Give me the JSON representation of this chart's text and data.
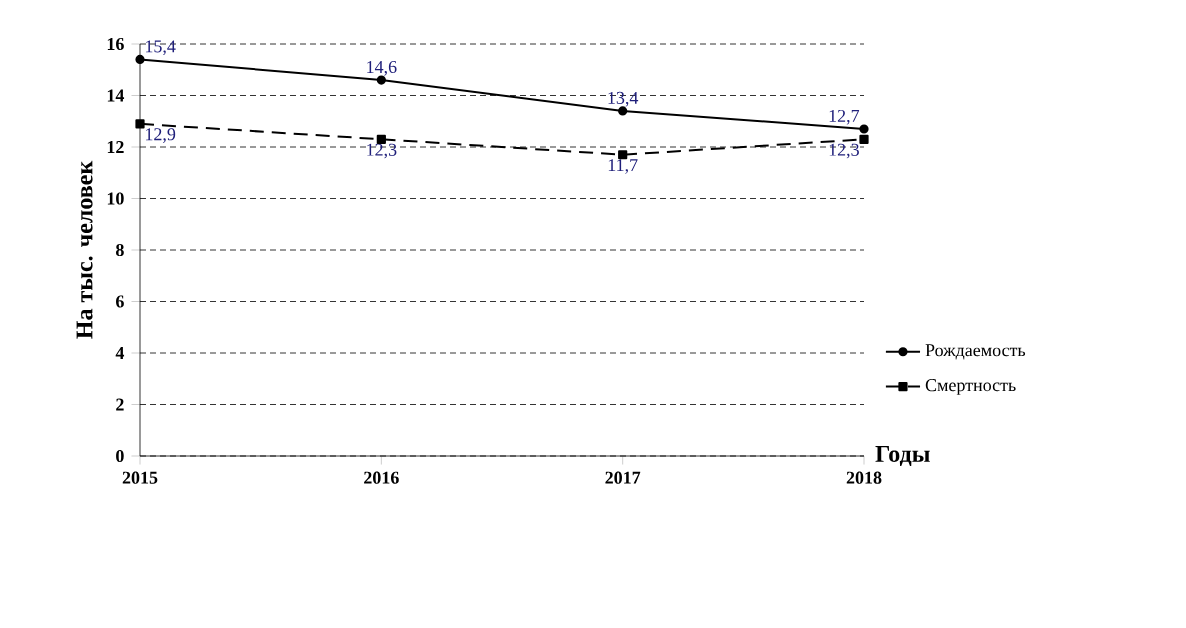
{
  "chart_data": {
    "type": "line",
    "xlabel": "Годы",
    "ylabel": "На тыс. человек",
    "x": [
      2015,
      2016,
      2017,
      2018
    ],
    "xlim": [
      2015,
      2018
    ],
    "xticks": [
      2015,
      2016,
      2017,
      2018
    ],
    "ylim": [
      0,
      16
    ],
    "yticks": [
      0,
      2,
      4,
      6,
      8,
      10,
      12,
      14,
      16
    ],
    "grid": "y",
    "legend": "right",
    "series": [
      {
        "name": "Рождаемость",
        "color": "#000000",
        "marker": "circle",
        "line_style": "solid",
        "values": [
          15.4,
          14.6,
          13.4,
          12.7
        ],
        "value_labels": [
          "15,4",
          "14,6",
          "13,4",
          "12,7"
        ]
      },
      {
        "name": "Смертность",
        "color": "#000000",
        "marker": "square",
        "line_style": "dashed",
        "values": [
          12.9,
          12.3,
          11.7,
          12.3
        ],
        "value_labels": [
          "12,9",
          "12,3",
          "11,7",
          "12,3"
        ]
      }
    ]
  }
}
